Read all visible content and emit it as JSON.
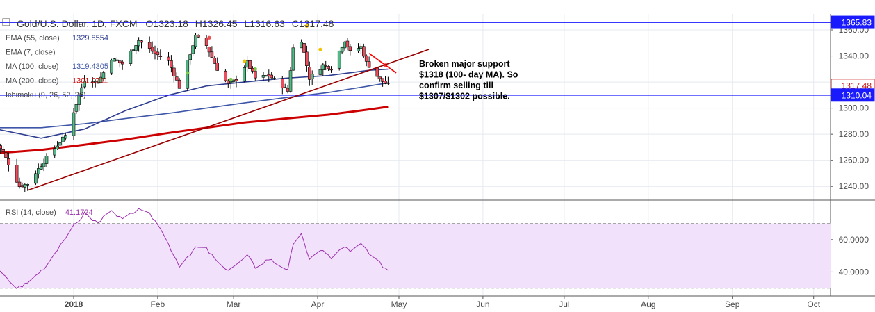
{
  "chart_data": {
    "type": "candlestick",
    "title": {
      "symbol": "Gold/U.S. Dollar, 1D, FXCM",
      "open_label": "O",
      "open": "1323.18",
      "high_label": "H",
      "high": "1326.45",
      "low_label": "L",
      "low": "1316.63",
      "close_label": "C",
      "close": "1317.48"
    },
    "indicators": [
      {
        "label": "EMA (55, close)",
        "value": "1329.8554",
        "color": "#2e3d8f"
      },
      {
        "label": "EMA (7, close)",
        "value": "",
        "color": "#c8c8c8"
      },
      {
        "label": "MA (100, close)",
        "value": "1319.4305",
        "color": "#3d56a8"
      },
      {
        "label": "MA (200, close)",
        "value": "1301.0711",
        "color": "#cc0000"
      },
      {
        "label": "Ichimoku (9, 26, 52, 26)",
        "value": "",
        "color": "#c8c8c8"
      }
    ],
    "price_axis": {
      "ticks": [
        "1360.00",
        "1340.00",
        "1320.00",
        "1300.00",
        "1280.00",
        "1260.00",
        "1240.00"
      ],
      "range": [
        1230,
        1368
      ]
    },
    "x_axis": {
      "ticks": [
        "2018",
        "Feb",
        "Mar",
        "Apr",
        "May",
        "Jun",
        "Jul",
        "Aug",
        "Sep",
        "Oct"
      ]
    },
    "price_labels": [
      {
        "text": "1365.83",
        "price": 1365.83,
        "bg": "#1a1aff",
        "fg": "#ffffff",
        "outlined": false
      },
      {
        "text": "1317.48",
        "price": 1317.48,
        "bg": "#ffffff",
        "fg": "#c81919",
        "outlined": true
      },
      {
        "text": "1310.04",
        "price": 1310.04,
        "bg": "#1a1aff",
        "fg": "#ffffff",
        "outlined": false
      }
    ],
    "horizontal_lines": [
      1365.83,
      1310.04
    ],
    "trendline": {
      "from": [
        "2017-12-15",
        1237
      ],
      "to": [
        "2018-05-12",
        1345
      ]
    },
    "annotation": [
      "Broken major support",
      "$1318 (100- day MA). So",
      "confirm selling till",
      "$1307/$1302 possible."
    ],
    "series": {
      "start_date": "2017-12-01",
      "end_date": "2018-04-27",
      "close_checkpoints": [
        [
          "2017-12-01",
          1280
        ],
        [
          "2017-12-06",
          1266
        ],
        [
          "2017-12-12",
          1240
        ],
        [
          "2017-12-15",
          1242
        ],
        [
          "2017-12-22",
          1262
        ],
        [
          "2017-12-29",
          1279
        ],
        [
          "2018-01-05",
          1322
        ],
        [
          "2018-01-10",
          1320
        ],
        [
          "2018-01-15",
          1338
        ],
        [
          "2018-01-19",
          1334
        ],
        [
          "2018-01-25",
          1352
        ],
        [
          "2018-01-31",
          1342
        ],
        [
          "2018-02-05",
          1336
        ],
        [
          "2018-02-09",
          1316
        ],
        [
          "2018-02-15",
          1355
        ],
        [
          "2018-02-19",
          1348
        ],
        [
          "2018-02-23",
          1330
        ],
        [
          "2018-02-27",
          1318
        ],
        [
          "2018-03-02",
          1322
        ],
        [
          "2018-03-06",
          1335
        ],
        [
          "2018-03-09",
          1323
        ],
        [
          "2018-03-14",
          1325
        ],
        [
          "2018-03-19",
          1317
        ],
        [
          "2018-03-21",
          1313
        ],
        [
          "2018-03-23",
          1346
        ],
        [
          "2018-03-26",
          1352
        ],
        [
          "2018-03-29",
          1323
        ],
        [
          "2018-04-03",
          1333
        ],
        [
          "2018-04-06",
          1331
        ],
        [
          "2018-04-11",
          1352
        ],
        [
          "2018-04-13",
          1343
        ],
        [
          "2018-04-17",
          1347
        ],
        [
          "2018-04-19",
          1335
        ],
        [
          "2018-04-24",
          1322
        ],
        [
          "2018-04-27",
          1317.48
        ]
      ],
      "ema55": [
        [
          "2017-12-01",
          1285
        ],
        [
          "2017-12-20",
          1277
        ],
        [
          "2018-01-05",
          1284
        ],
        [
          "2018-01-20",
          1298
        ],
        [
          "2018-02-05",
          1310
        ],
        [
          "2018-02-19",
          1317
        ],
        [
          "2018-03-05",
          1320
        ],
        [
          "2018-03-20",
          1323
        ],
        [
          "2018-04-05",
          1325
        ],
        [
          "2018-04-20",
          1329
        ],
        [
          "2018-04-27",
          1329.8554
        ]
      ],
      "ma100": [
        [
          "2017-12-01",
          1285
        ],
        [
          "2017-12-20",
          1285
        ],
        [
          "2018-01-05",
          1288
        ],
        [
          "2018-01-20",
          1292
        ],
        [
          "2018-02-05",
          1296
        ],
        [
          "2018-02-19",
          1300
        ],
        [
          "2018-03-05",
          1304
        ],
        [
          "2018-03-20",
          1308
        ],
        [
          "2018-04-05",
          1312
        ],
        [
          "2018-04-20",
          1317
        ],
        [
          "2018-04-27",
          1319.4305
        ]
      ],
      "ma200": [
        [
          "2017-12-01",
          1265
        ],
        [
          "2017-12-20",
          1268
        ],
        [
          "2018-01-05",
          1272
        ],
        [
          "2018-01-20",
          1276
        ],
        [
          "2018-02-05",
          1281
        ],
        [
          "2018-02-19",
          1285
        ],
        [
          "2018-03-05",
          1289
        ],
        [
          "2018-03-20",
          1292
        ],
        [
          "2018-04-05",
          1295
        ],
        [
          "2018-04-20",
          1299
        ],
        [
          "2018-04-27",
          1301.0711
        ]
      ],
      "ichimoku_dots": [
        {
          "date": "2018-02-12",
          "price": 1327,
          "color": "#7dc94b"
        },
        {
          "date": "2018-02-20",
          "price": 1354,
          "color": "#e8504f"
        },
        {
          "date": "2018-02-28",
          "price": 1322,
          "color": "#7dc94b"
        },
        {
          "date": "2018-03-05",
          "price": 1336,
          "color": "#f2c100"
        },
        {
          "date": "2018-03-09",
          "price": 1330,
          "color": "#7dc94b"
        },
        {
          "date": "2018-03-28",
          "price": 1363,
          "color": "#f2c100"
        },
        {
          "date": "2018-04-02",
          "price": 1345,
          "color": "#f2c100"
        },
        {
          "date": "2018-04-26",
          "price": 1333,
          "color": "#e8504f"
        }
      ]
    },
    "rsi": {
      "label": "RSI (14, close)",
      "value": "41.1724",
      "band": [
        30,
        70
      ],
      "ticks": [
        "60.0000",
        "40.0000"
      ],
      "range": [
        26,
        84
      ],
      "color": "#9b2fae",
      "band_fill": "#f2e1fb",
      "checkpoints": [
        [
          "2017-12-01",
          45
        ],
        [
          "2017-12-06",
          38
        ],
        [
          "2017-12-11",
          30
        ],
        [
          "2017-12-15",
          33
        ],
        [
          "2017-12-22",
          44
        ],
        [
          "2017-12-29",
          62
        ],
        [
          "2018-01-05",
          76
        ],
        [
          "2018-01-10",
          70
        ],
        [
          "2018-01-15",
          79
        ],
        [
          "2018-01-19",
          72
        ],
        [
          "2018-01-25",
          80
        ],
        [
          "2018-01-31",
          73
        ],
        [
          "2018-02-05",
          57
        ],
        [
          "2018-02-09",
          44
        ],
        [
          "2018-02-15",
          55
        ],
        [
          "2018-02-19",
          54
        ],
        [
          "2018-02-23",
          46
        ],
        [
          "2018-02-27",
          42
        ],
        [
          "2018-03-02",
          44
        ],
        [
          "2018-03-06",
          50
        ],
        [
          "2018-03-09",
          43
        ],
        [
          "2018-03-14",
          48
        ],
        [
          "2018-03-19",
          43
        ],
        [
          "2018-03-21",
          42
        ],
        [
          "2018-03-23",
          56
        ],
        [
          "2018-03-26",
          65
        ],
        [
          "2018-03-29",
          47
        ],
        [
          "2018-04-03",
          54
        ],
        [
          "2018-04-06",
          48
        ],
        [
          "2018-04-11",
          56
        ],
        [
          "2018-04-13",
          52
        ],
        [
          "2018-04-17",
          57
        ],
        [
          "2018-04-19",
          54
        ],
        [
          "2018-04-24",
          45
        ],
        [
          "2018-04-27",
          41.1724
        ]
      ]
    },
    "colors": {
      "up": "#53b987",
      "down": "#eb4d5c",
      "candle_border": "#000000",
      "trendline": "#990000",
      "hline": "#1a1aff",
      "short_trend": "#ff0000",
      "grid": "#e4e9ef",
      "axis_text": "#4a4a4a"
    }
  }
}
